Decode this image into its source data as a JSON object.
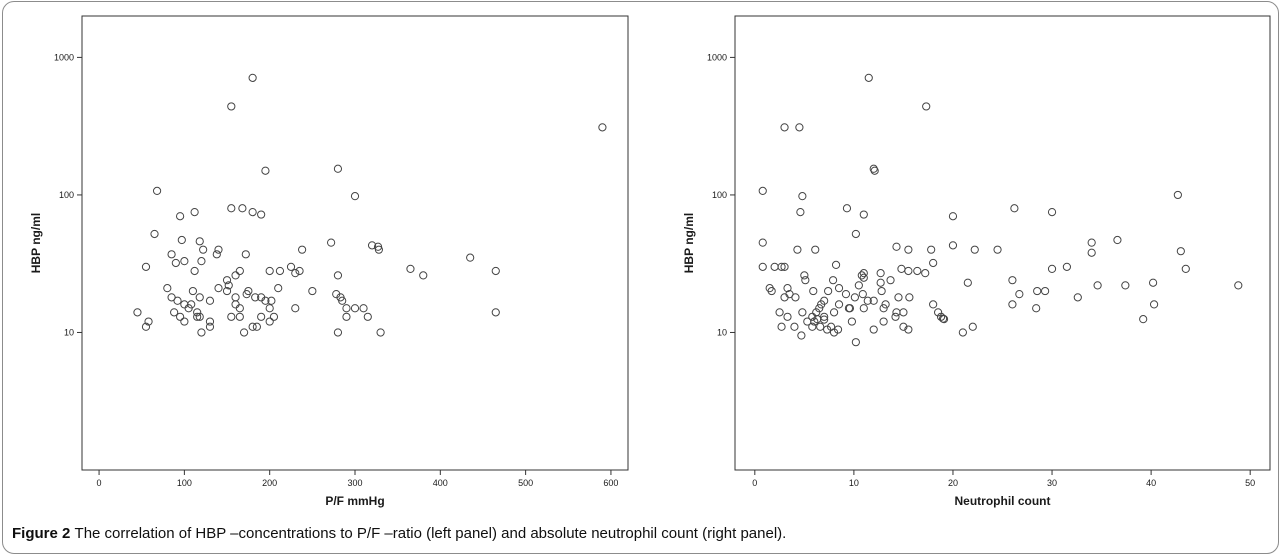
{
  "caption": {
    "label": "Figure 2",
    "text": "The correlation of HBP –concentrations to P/F –ratio (left panel) and absolute neutrophil count (right panel)."
  },
  "chart_data": [
    {
      "type": "scatter",
      "title": "",
      "xlabel": "P/F mmHg",
      "ylabel": "HBP ng/ml",
      "yscale": "log",
      "xlim": [
        -20,
        620
      ],
      "ylim": [
        1,
        2000
      ],
      "xticks": [
        0,
        100,
        200,
        300,
        400,
        500,
        600
      ],
      "yticks": [
        10,
        100,
        1000
      ],
      "grid": false,
      "marker": "open-circle",
      "points": [
        [
          590,
          310
        ],
        [
          180,
          710
        ],
        [
          155,
          440
        ],
        [
          280,
          155
        ],
        [
          195,
          150
        ],
        [
          68,
          107
        ],
        [
          300,
          98
        ],
        [
          112,
          75
        ],
        [
          155,
          80
        ],
        [
          168,
          80
        ],
        [
          180,
          75
        ],
        [
          190,
          72
        ],
        [
          95,
          70
        ],
        [
          65,
          52
        ],
        [
          97,
          47
        ],
        [
          118,
          46
        ],
        [
          122,
          40
        ],
        [
          140,
          40
        ],
        [
          138,
          37
        ],
        [
          172,
          37
        ],
        [
          85,
          37
        ],
        [
          238,
          40
        ],
        [
          272,
          45
        ],
        [
          320,
          43
        ],
        [
          327,
          42
        ],
        [
          328,
          40
        ],
        [
          435,
          35
        ],
        [
          120,
          33
        ],
        [
          100,
          33
        ],
        [
          90,
          32
        ],
        [
          55,
          30
        ],
        [
          112,
          28
        ],
        [
          225,
          30
        ],
        [
          165,
          28
        ],
        [
          200,
          28
        ],
        [
          212,
          28
        ],
        [
          235,
          28
        ],
        [
          230,
          27
        ],
        [
          365,
          29
        ],
        [
          380,
          26
        ],
        [
          465,
          28
        ],
        [
          150,
          24
        ],
        [
          160,
          26
        ],
        [
          280,
          26
        ],
        [
          152,
          22
        ],
        [
          150,
          20
        ],
        [
          140,
          21
        ],
        [
          110,
          20
        ],
        [
          118,
          18
        ],
        [
          85,
          18
        ],
        [
          92,
          17
        ],
        [
          100,
          16
        ],
        [
          108,
          16
        ],
        [
          80,
          21
        ],
        [
          210,
          21
        ],
        [
          250,
          20
        ],
        [
          190,
          18
        ],
        [
          173,
          19
        ],
        [
          183,
          18
        ],
        [
          195,
          17
        ],
        [
          202,
          17
        ],
        [
          278,
          19
        ],
        [
          283,
          18
        ],
        [
          285,
          17
        ],
        [
          290,
          15
        ],
        [
          300,
          15
        ],
        [
          310,
          15
        ],
        [
          315,
          13
        ],
        [
          160,
          16
        ],
        [
          165,
          15
        ],
        [
          200,
          15
        ],
        [
          230,
          15
        ],
        [
          130,
          17
        ],
        [
          105,
          15
        ],
        [
          115,
          14
        ],
        [
          88,
          14
        ],
        [
          95,
          13
        ],
        [
          118,
          13
        ],
        [
          155,
          13
        ],
        [
          165,
          13
        ],
        [
          190,
          13
        ],
        [
          205,
          13
        ],
        [
          290,
          13
        ],
        [
          45,
          14
        ],
        [
          465,
          14
        ],
        [
          100,
          12
        ],
        [
          200,
          12
        ],
        [
          55,
          11
        ],
        [
          58,
          12
        ],
        [
          130,
          11
        ],
        [
          180,
          11
        ],
        [
          185,
          11
        ],
        [
          120,
          10
        ],
        [
          170,
          10
        ],
        [
          280,
          10
        ],
        [
          330,
          10
        ],
        [
          115,
          13
        ],
        [
          130,
          12
        ],
        [
          160,
          18
        ],
        [
          175,
          20
        ]
      ]
    },
    {
      "type": "scatter",
      "title": "",
      "xlabel": "Neutrophil count",
      "ylabel": "HBP ng/ml",
      "yscale": "log",
      "xlim": [
        -2,
        52
      ],
      "ylim": [
        1,
        2000
      ],
      "xticks": [
        0,
        10,
        20,
        30,
        40,
        50
      ],
      "yticks": [
        10,
        100,
        1000
      ],
      "grid": false,
      "marker": "open-circle",
      "points": [
        [
          11.5,
          710
        ],
        [
          17.3,
          440
        ],
        [
          3,
          310
        ],
        [
          4.5,
          310
        ],
        [
          12,
          155
        ],
        [
          12.1,
          150
        ],
        [
          0.8,
          107
        ],
        [
          4.8,
          98
        ],
        [
          42.7,
          100
        ],
        [
          9.3,
          80
        ],
        [
          26.2,
          80
        ],
        [
          11,
          72
        ],
        [
          4.6,
          75
        ],
        [
          30,
          75
        ],
        [
          20,
          70
        ],
        [
          10.2,
          52
        ],
        [
          36.6,
          47
        ],
        [
          34,
          45
        ],
        [
          0.8,
          45
        ],
        [
          4.3,
          40
        ],
        [
          15.5,
          40
        ],
        [
          17.8,
          40
        ],
        [
          22.2,
          40
        ],
        [
          24.5,
          40
        ],
        [
          14.3,
          42
        ],
        [
          43,
          39
        ],
        [
          6.1,
          40
        ],
        [
          20,
          43
        ],
        [
          34,
          38
        ],
        [
          30,
          29
        ],
        [
          31.5,
          30
        ],
        [
          8.2,
          31
        ],
        [
          3,
          30
        ],
        [
          2,
          30
        ],
        [
          0.8,
          30
        ],
        [
          2.7,
          30
        ],
        [
          14.8,
          29
        ],
        [
          43.5,
          29
        ],
        [
          11,
          27
        ],
        [
          5,
          26
        ],
        [
          5.1,
          24
        ],
        [
          10.8,
          26
        ],
        [
          15.5,
          28
        ],
        [
          17.2,
          27
        ],
        [
          16.4,
          28
        ],
        [
          12.7,
          27
        ],
        [
          7.9,
          24
        ],
        [
          8.5,
          21
        ],
        [
          11,
          25
        ],
        [
          12.7,
          23
        ],
        [
          13.7,
          24
        ],
        [
          26,
          24
        ],
        [
          28.5,
          20
        ],
        [
          18,
          32
        ],
        [
          37.4,
          22
        ],
        [
          40.2,
          23
        ],
        [
          48.8,
          22
        ],
        [
          34.6,
          22
        ],
        [
          21.5,
          23
        ],
        [
          1.5,
          21
        ],
        [
          1.7,
          20
        ],
        [
          3.3,
          21
        ],
        [
          7.4,
          20
        ],
        [
          9.2,
          19
        ],
        [
          10.1,
          18
        ],
        [
          10.9,
          19
        ],
        [
          11.4,
          17
        ],
        [
          12.8,
          20
        ],
        [
          14.5,
          18
        ],
        [
          15.6,
          18
        ],
        [
          18,
          16
        ],
        [
          4.1,
          18
        ],
        [
          5.9,
          20
        ],
        [
          6.7,
          16
        ],
        [
          7,
          17
        ],
        [
          8.5,
          16
        ],
        [
          9.6,
          15
        ],
        [
          12,
          17
        ],
        [
          13.2,
          16
        ],
        [
          26,
          16
        ],
        [
          32.6,
          18
        ],
        [
          26.7,
          19
        ],
        [
          29.3,
          20
        ],
        [
          40.3,
          16
        ],
        [
          2.5,
          14
        ],
        [
          3.3,
          13
        ],
        [
          4.8,
          14
        ],
        [
          5.8,
          13
        ],
        [
          6.2,
          14
        ],
        [
          7,
          13
        ],
        [
          8,
          14
        ],
        [
          9.5,
          15
        ],
        [
          11,
          15
        ],
        [
          13,
          15
        ],
        [
          14.3,
          14
        ],
        [
          15,
          14
        ],
        [
          18.5,
          14
        ],
        [
          18.8,
          13
        ],
        [
          19,
          12.6
        ],
        [
          19.1,
          12.5
        ],
        [
          6,
          12
        ],
        [
          7,
          12.4
        ],
        [
          9.8,
          12
        ],
        [
          13,
          12
        ],
        [
          14.2,
          13
        ],
        [
          2.7,
          11
        ],
        [
          4,
          11
        ],
        [
          5.8,
          11
        ],
        [
          6.6,
          11
        ],
        [
          7.7,
          11
        ],
        [
          22,
          11
        ],
        [
          39.2,
          12.5
        ],
        [
          7.3,
          10.5
        ],
        [
          8,
          10
        ],
        [
          8.4,
          10.5
        ],
        [
          12,
          10.5
        ],
        [
          15.5,
          10.5
        ],
        [
          15,
          11
        ],
        [
          21,
          10
        ],
        [
          4.7,
          9.5
        ],
        [
          10.2,
          8.5
        ],
        [
          28.4,
          15
        ],
        [
          6.3,
          12.5
        ],
        [
          3,
          18
        ],
        [
          3.5,
          19
        ],
        [
          5.3,
          12
        ],
        [
          6.5,
          15
        ],
        [
          10.5,
          22
        ]
      ]
    }
  ]
}
